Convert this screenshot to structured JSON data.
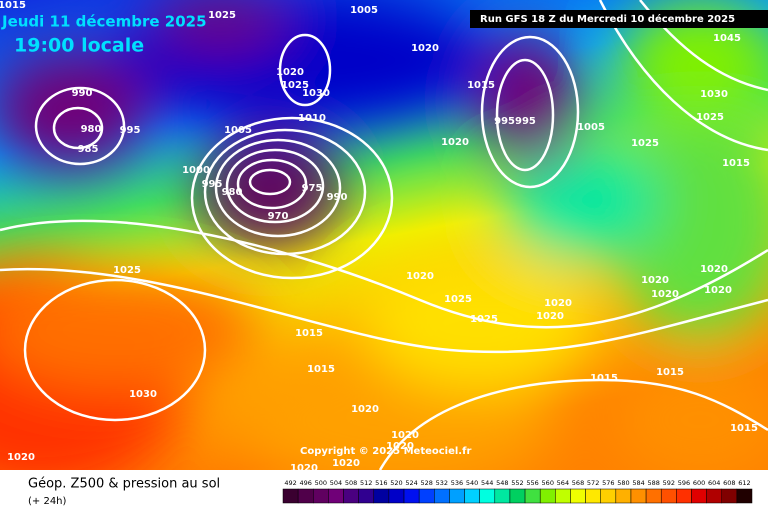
{
  "header": {
    "date": "Jeudi 11 décembre 2025",
    "time": "19:00 locale",
    "run": "Run GFS 18 Z du Mercredi 10 décembre 2025"
  },
  "copyright": "Copyright © 2025 Meteociel.fr",
  "isobar_labels": [
    "1015",
    "1025",
    "1005",
    "1020",
    "1045",
    "1020",
    "1025",
    "1030",
    "1010",
    "1005",
    "990",
    "980",
    "995",
    "985",
    "1000",
    "995",
    "980",
    "970",
    "975",
    "990",
    "1015",
    "995995",
    "1005",
    "1020",
    "1030",
    "1025",
    "1025",
    "1015",
    "1025",
    "1020",
    "1025",
    "1020",
    "1020",
    "1025",
    "1020",
    "1020",
    "1020",
    "1020",
    "1015",
    "1015",
    "1030",
    "1015",
    "1015",
    "1020",
    "1020",
    "1020",
    "1020",
    "1020",
    "1020",
    "1015"
  ],
  "legend": {
    "title": "Géop. Z500 & pression au sol",
    "subtitle": "(+ 24h)",
    "ticks": [
      492,
      496,
      500,
      504,
      508,
      512,
      516,
      520,
      524,
      528,
      532,
      536,
      540,
      544,
      548,
      552,
      556,
      560,
      564,
      568,
      572,
      576,
      580,
      584,
      588,
      592,
      596,
      600,
      604,
      608,
      612
    ],
    "colors": [
      "#3a0030",
      "#50004a",
      "#600060",
      "#700078",
      "#4a0080",
      "#300090",
      "#0000a0",
      "#0000c8",
      "#0010f0",
      "#0040ff",
      "#0070ff",
      "#00a0ff",
      "#00d0ff",
      "#00ffe0",
      "#00e8a0",
      "#00d060",
      "#40e040",
      "#80f000",
      "#c0ff00",
      "#f0ff00",
      "#ffe800",
      "#ffd000",
      "#ffb000",
      "#ff9000",
      "#ff7000",
      "#ff5000",
      "#ff3000",
      "#e00000",
      "#b00000",
      "#800000",
      "#200000"
    ]
  }
}
